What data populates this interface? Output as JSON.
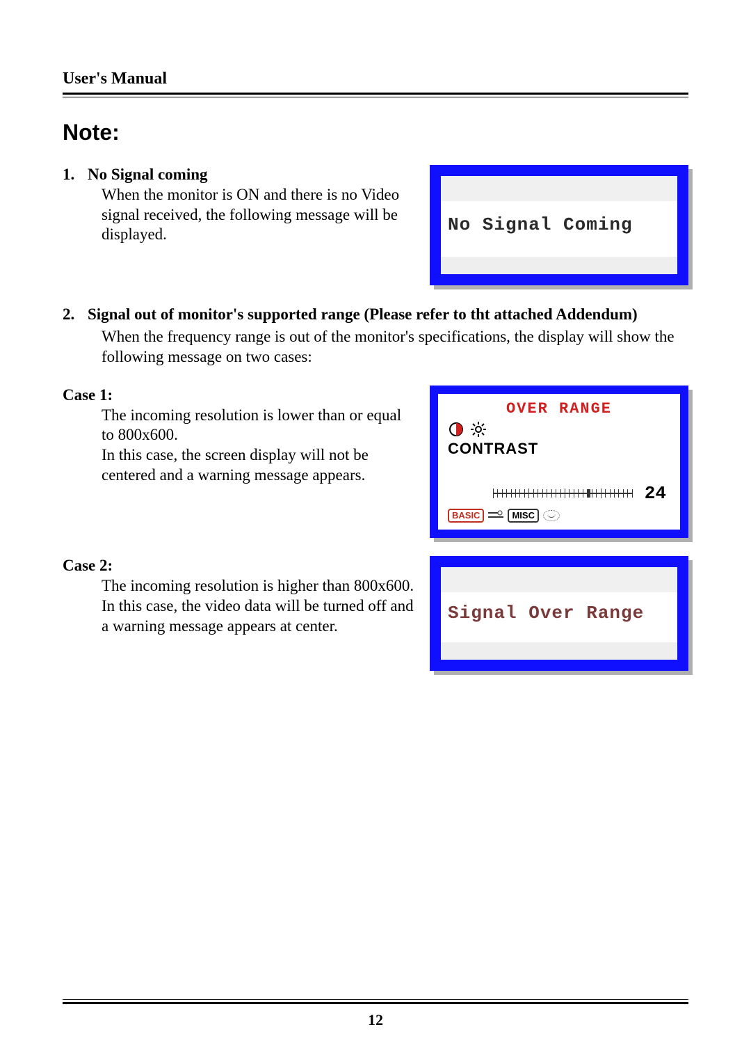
{
  "header": {
    "title": "User's Manual"
  },
  "note_heading": "Note:",
  "item1": {
    "num": "1.",
    "title": "No Signal coming",
    "body": "When the monitor is ON and there is no Video signal received, the following message will be displayed."
  },
  "osd_no_signal": {
    "message": "No Signal Coming",
    "frame_color": "#1010ff",
    "text_color": "#2a2a2a",
    "bg_color": "#ffffff",
    "font": "Courier New",
    "font_size_pt": 20
  },
  "item2": {
    "num": "2.",
    "title": "Signal out of monitor's supported range (Please refer to tht attached Addendum)",
    "body": "When the frequency range is out of the monitor's specifications, the display will show the following message on two cases:"
  },
  "case1": {
    "label": "Case 1:",
    "body1": "The incoming resolution is lower than or equal to 800x600.",
    "body2": "In this case, the screen display will not be centered and a warning message appears."
  },
  "osd_over_range": {
    "title": "OVER RANGE",
    "title_color": "#d02020",
    "contrast_label": "CONTRAST",
    "value": 24,
    "slider": {
      "min": 0,
      "max": 100,
      "value": 24,
      "ticks": 32
    },
    "tabs": [
      "BASIC",
      "",
      "MISC",
      ""
    ],
    "icons": [
      "half-circle-icon",
      "brightness-icon"
    ],
    "frame_color": "#1010ff",
    "bg_color": "#ffffff"
  },
  "case2": {
    "label": "Case 2:",
    "body1": "The incoming resolution is higher than 800x600.",
    "body2": "In this case, the video data will be turned off and a warning message appears at center."
  },
  "osd_signal_over": {
    "message": "Signal Over Range",
    "frame_color": "#1010ff",
    "text_color": "#7a3a3a",
    "bg_color": "#ffffff",
    "font": "Courier New",
    "font_size_pt": 20
  },
  "footer": {
    "page_number": "12"
  },
  "palette": {
    "page_bg": "#ffffff",
    "text": "#000000",
    "osd_blue": "#1010ff",
    "osd_shadow": "#b0b0b0",
    "red": "#d02020"
  }
}
